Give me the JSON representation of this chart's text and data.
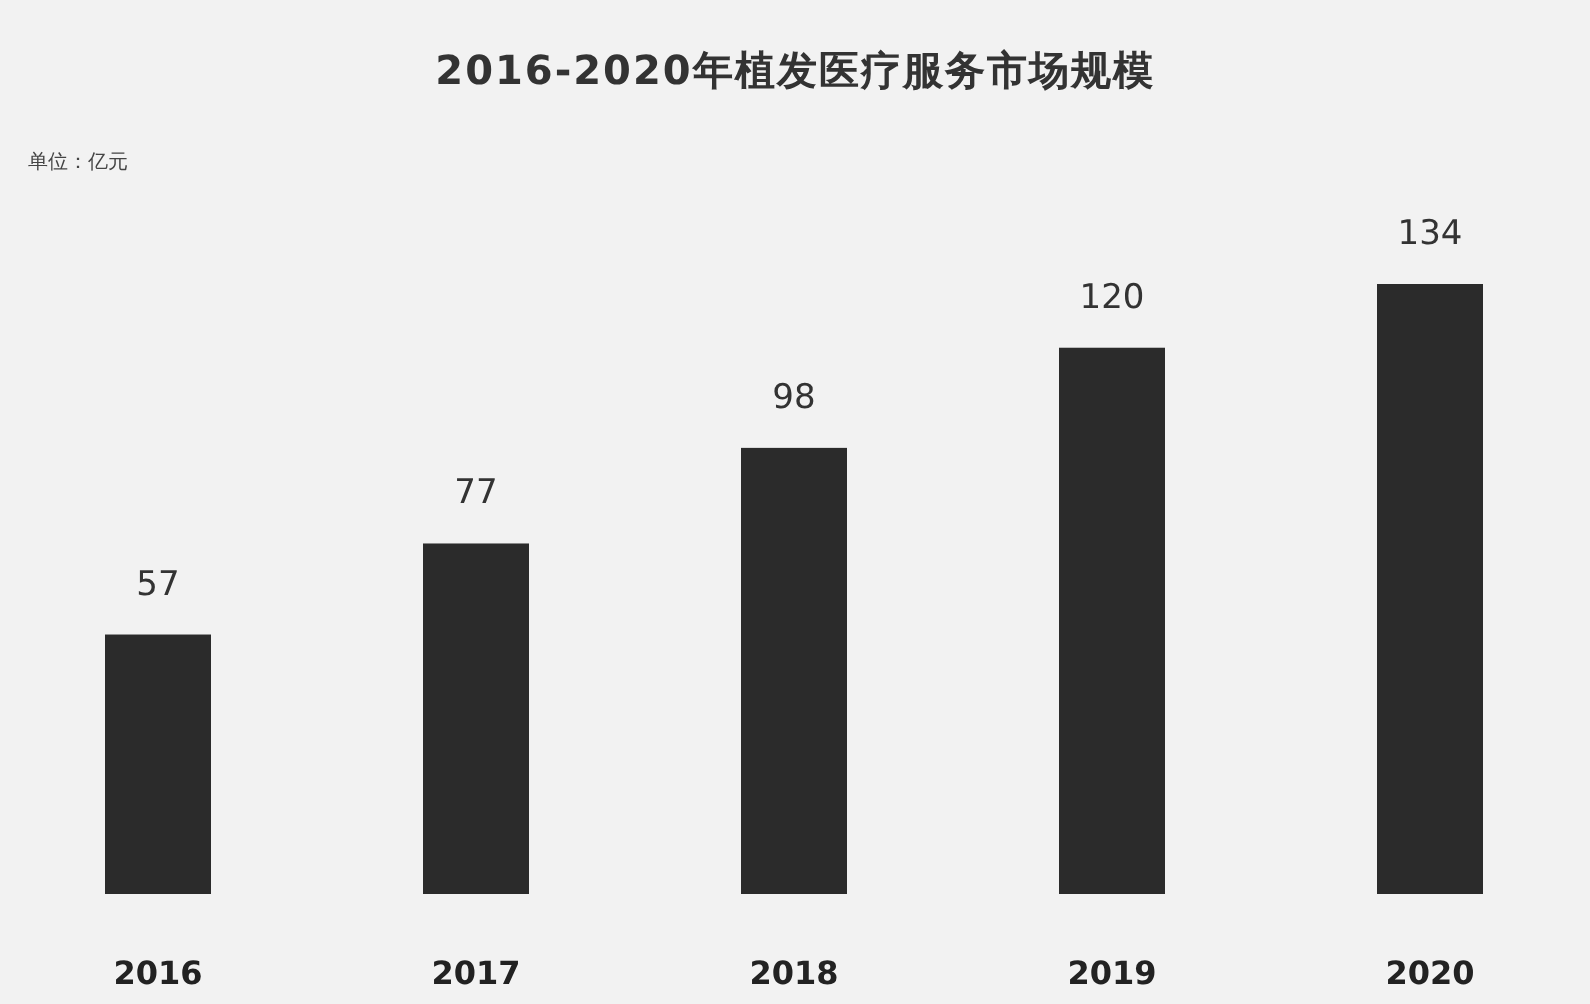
{
  "chart_data": {
    "type": "bar",
    "title": "2016-2020年植发医疗服务市场规模",
    "annotations": [
      "单位：亿元"
    ],
    "categories": [
      "2016",
      "2017",
      "2018",
      "2019",
      "2020"
    ],
    "values": [
      57,
      77,
      98,
      120,
      134
    ],
    "color": "#2b2b2b",
    "data_labels": true
  }
}
